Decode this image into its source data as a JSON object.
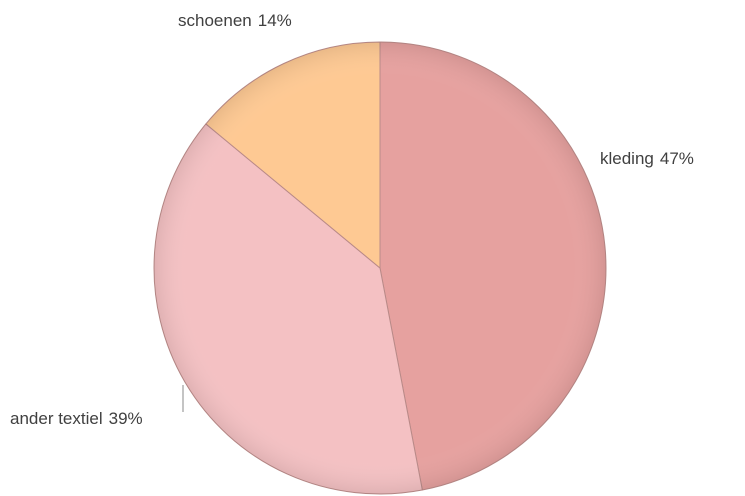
{
  "chart_data": {
    "type": "pie",
    "categories": [
      "kleding",
      "ander textiel",
      "schoenen"
    ],
    "values": [
      47,
      39,
      14
    ],
    "value_labels": [
      "47%",
      "39%",
      "14%"
    ],
    "colors": [
      "#e6a19f",
      "#f4c1c3",
      "#fec993"
    ]
  }
}
